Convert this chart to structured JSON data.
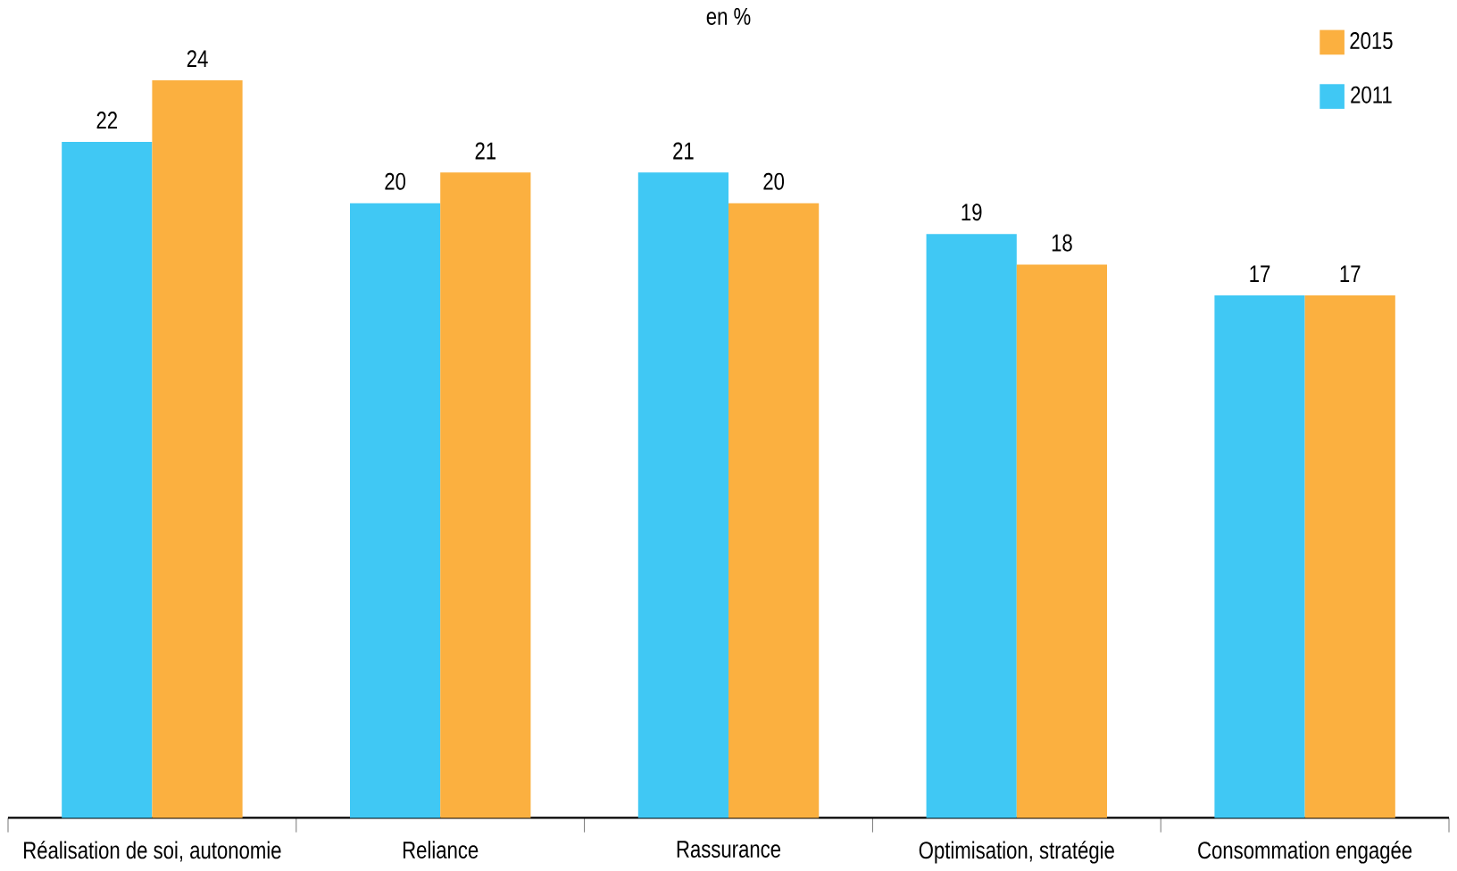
{
  "chart_data": {
    "type": "bar",
    "title": "en %",
    "categories": [
      "Réalisation de soi, autonomie",
      "Reliance",
      "Rassurance",
      "Optimisation, stratégie",
      "Consommation engagée"
    ],
    "series": [
      {
        "name": "2011",
        "color": "#40c8f4",
        "values": [
          22,
          20,
          21,
          19,
          17
        ]
      },
      {
        "name": "2015",
        "color": "#fbb040",
        "values": [
          24,
          21,
          20,
          18,
          17
        ]
      }
    ],
    "data_labels": true,
    "legend": "top right"
  }
}
